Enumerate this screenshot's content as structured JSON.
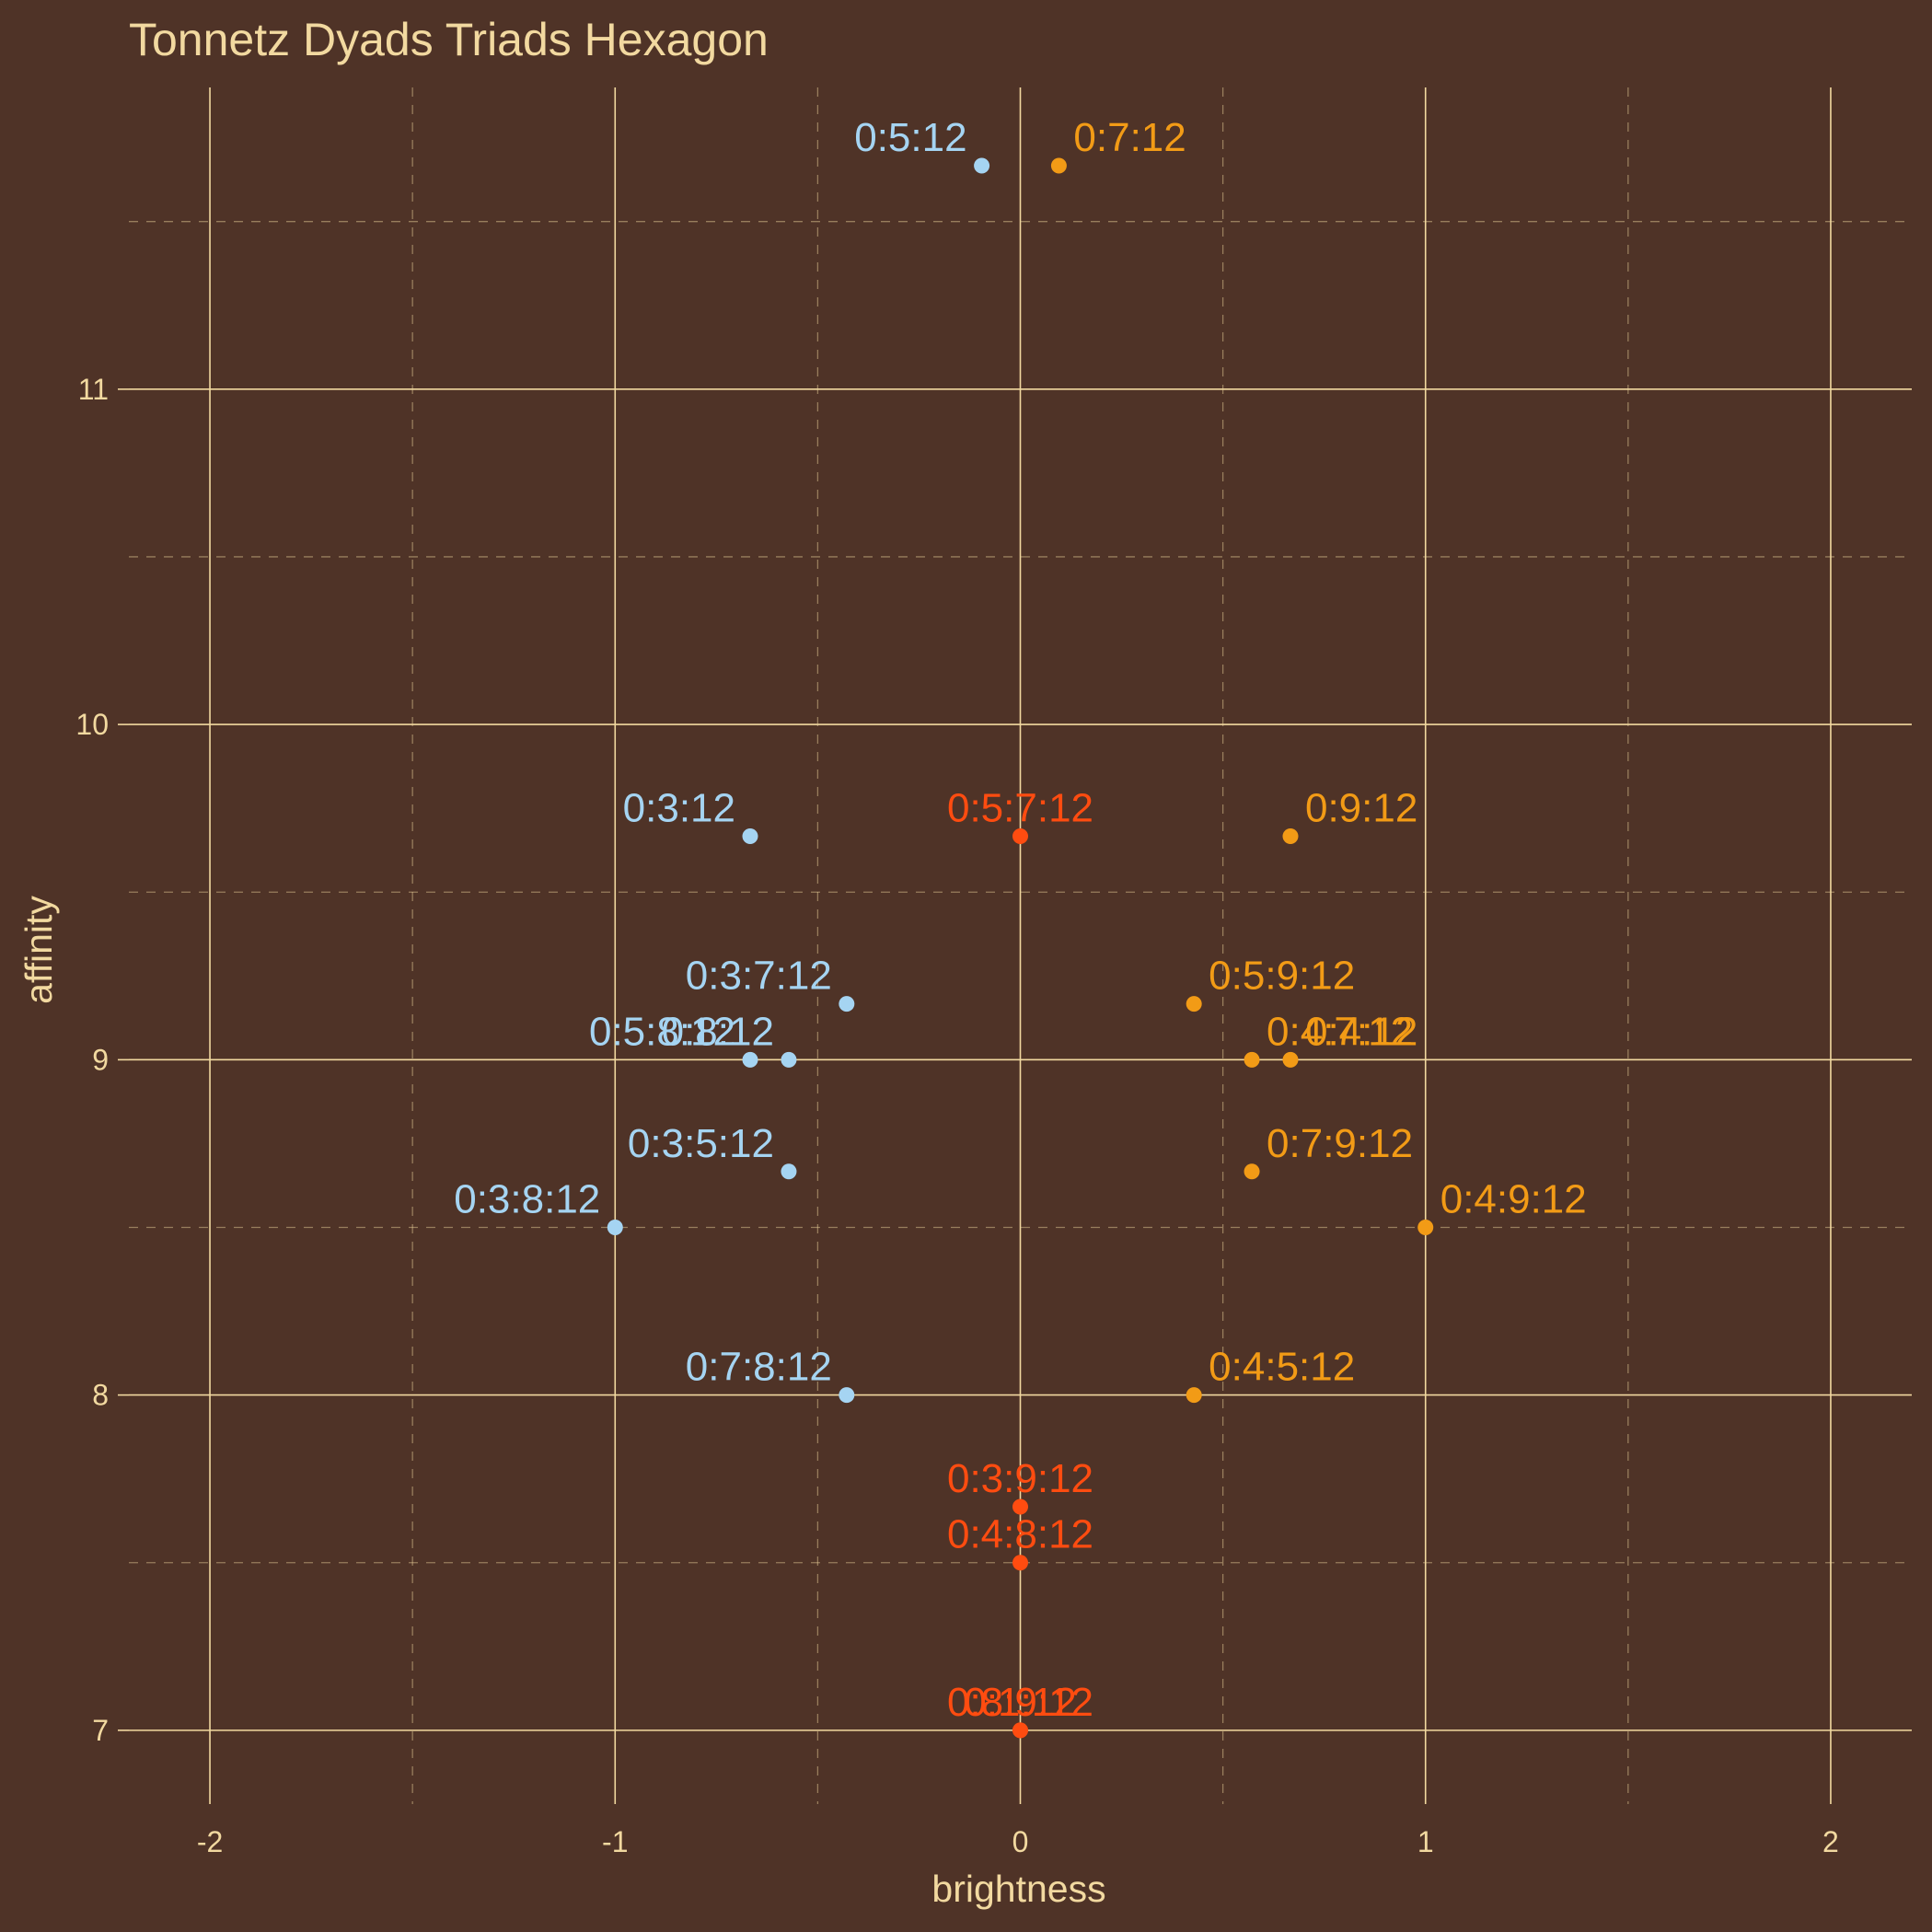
{
  "chart_data": {
    "type": "scatter",
    "title": "Tonnetz Dyads Triads Hexagon",
    "xlabel": "brightness",
    "ylabel": "affinity",
    "xlim": [
      -2.2,
      2.2
    ],
    "ylim": [
      6.78,
      11.9
    ],
    "x_major_ticks": [
      -2,
      -1,
      0,
      1,
      2
    ],
    "x_minor_ticks": [
      -1.5,
      -0.5,
      0.5,
      1.5
    ],
    "y_major_ticks": [
      7,
      8,
      9,
      10,
      11
    ],
    "y_minor_ticks": [
      7.5,
      8.5,
      9.5,
      10.5,
      11.5
    ],
    "x_tick_labels": [
      "-2",
      "-1",
      "0",
      "1",
      "2"
    ],
    "y_tick_labels": [
      "7",
      "8",
      "9",
      "10",
      "11"
    ],
    "grid": true,
    "legend": "none",
    "colors": {
      "background": "#4f3327",
      "grid": "#f2d9a0",
      "text": "#f2d9a0",
      "dark": "#a5d4f2",
      "bright": "#f29b16",
      "neutral": "#ff4c10"
    },
    "points": [
      {
        "label": "0:5:12",
        "x": -0.0952,
        "y": 11.6667,
        "group": "dark",
        "anchor": "end"
      },
      {
        "label": "0:7:12",
        "x": 0.0952,
        "y": 11.6667,
        "group": "bright",
        "anchor": "start"
      },
      {
        "label": "0:3:12",
        "x": -0.6667,
        "y": 9.6667,
        "group": "dark",
        "anchor": "end"
      },
      {
        "label": "0:5:7:12",
        "x": 0,
        "y": 9.6667,
        "group": "neutral",
        "anchor": "middle"
      },
      {
        "label": "0:9:12",
        "x": 0.6667,
        "y": 9.6667,
        "group": "bright",
        "anchor": "start"
      },
      {
        "label": "0:3:7:12",
        "x": -0.4286,
        "y": 9.1667,
        "group": "dark",
        "anchor": "end"
      },
      {
        "label": "0:5:9:12",
        "x": 0.4286,
        "y": 9.1667,
        "group": "bright",
        "anchor": "start"
      },
      {
        "label": "0:5:8:12",
        "x": -0.6667,
        "y": 9.0,
        "group": "dark",
        "anchor": "end"
      },
      {
        "label": "0:8:12",
        "x": -0.5714,
        "y": 9.0,
        "group": "dark",
        "anchor": "end"
      },
      {
        "label": "0:4:7:12",
        "x": 0.5714,
        "y": 9.0,
        "group": "bright",
        "anchor": "start"
      },
      {
        "label": "0:4:12",
        "x": 0.6667,
        "y": 9.0,
        "group": "bright",
        "anchor": "start"
      },
      {
        "label": "0:3:5:12",
        "x": -0.5714,
        "y": 8.6667,
        "group": "dark",
        "anchor": "end"
      },
      {
        "label": "0:7:9:12",
        "x": 0.5714,
        "y": 8.6667,
        "group": "bright",
        "anchor": "start"
      },
      {
        "label": "0:3:8:12",
        "x": -1.0,
        "y": 8.5,
        "group": "dark",
        "anchor": "end"
      },
      {
        "label": "0:4:9:12",
        "x": 1.0,
        "y": 8.5,
        "group": "bright",
        "anchor": "start"
      },
      {
        "label": "0:7:8:12",
        "x": -0.4286,
        "y": 8.0,
        "group": "dark",
        "anchor": "end"
      },
      {
        "label": "0:4:5:12",
        "x": 0.4286,
        "y": 8.0,
        "group": "bright",
        "anchor": "start"
      },
      {
        "label": "0:3:9:12",
        "x": 0,
        "y": 7.6667,
        "group": "neutral",
        "anchor": "middle"
      },
      {
        "label": "0:4:8:12",
        "x": 0,
        "y": 7.5,
        "group": "neutral",
        "anchor": "middle"
      },
      {
        "label": "0:8:9:12",
        "x": 0,
        "y": 7.0,
        "group": "neutral",
        "anchor": "middle"
      },
      {
        "label": "0:1:12",
        "x": 0,
        "y": 7.0,
        "group": "neutral",
        "anchor": "middle"
      }
    ]
  }
}
